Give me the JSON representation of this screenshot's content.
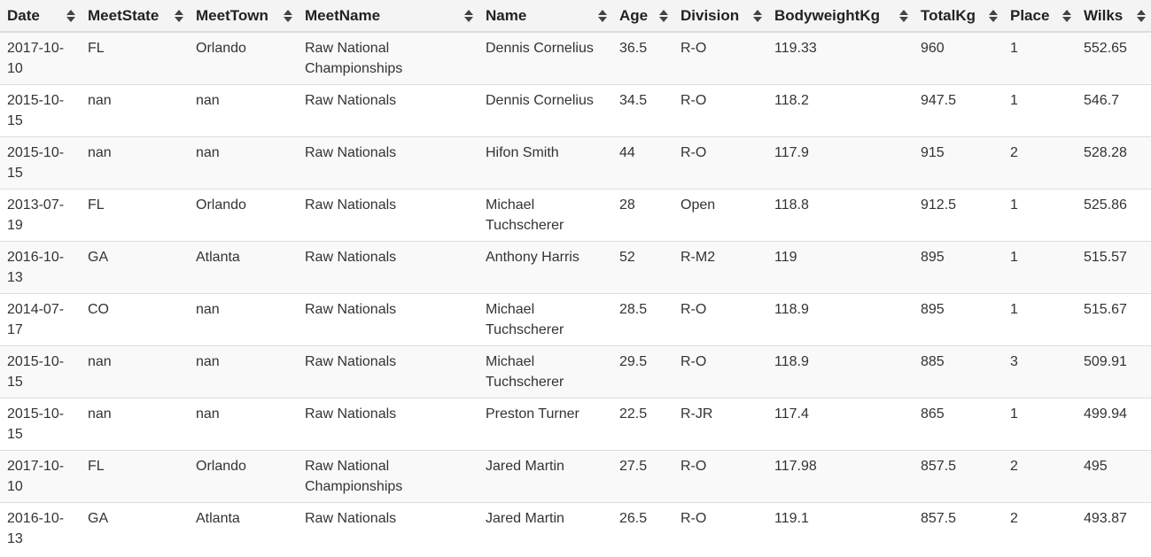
{
  "table": {
    "columns": [
      "Date",
      "MeetState",
      "MeetTown",
      "MeetName",
      "Name",
      "Age",
      "Division",
      "BodyweightKg",
      "TotalKg",
      "Place",
      "Wilks"
    ],
    "rows": [
      [
        "2017-10-10",
        "FL",
        "Orlando",
        "Raw National Championships",
        "Dennis Cornelius",
        "36.5",
        "R-O",
        "119.33",
        "960",
        "1",
        "552.65"
      ],
      [
        "2015-10-15",
        "nan",
        "nan",
        "Raw Nationals",
        "Dennis Cornelius",
        "34.5",
        "R-O",
        "118.2",
        "947.5",
        "1",
        "546.7"
      ],
      [
        "2015-10-15",
        "nan",
        "nan",
        "Raw Nationals",
        "Hifon Smith",
        "44",
        "R-O",
        "117.9",
        "915",
        "2",
        "528.28"
      ],
      [
        "2013-07-19",
        "FL",
        "Orlando",
        "Raw Nationals",
        "Michael Tuchscherer",
        "28",
        "Open",
        "118.8",
        "912.5",
        "1",
        "525.86"
      ],
      [
        "2016-10-13",
        "GA",
        "Atlanta",
        "Raw Nationals",
        "Anthony Harris",
        "52",
        "R-M2",
        "119",
        "895",
        "1",
        "515.57"
      ],
      [
        "2014-07-17",
        "CO",
        "nan",
        "Raw Nationals",
        "Michael Tuchscherer",
        "28.5",
        "R-O",
        "118.9",
        "895",
        "1",
        "515.67"
      ],
      [
        "2015-10-15",
        "nan",
        "nan",
        "Raw Nationals",
        "Michael Tuchscherer",
        "29.5",
        "R-O",
        "118.9",
        "885",
        "3",
        "509.91"
      ],
      [
        "2015-10-15",
        "nan",
        "nan",
        "Raw Nationals",
        "Preston Turner",
        "22.5",
        "R-JR",
        "117.4",
        "865",
        "1",
        "499.94"
      ],
      [
        "2017-10-10",
        "FL",
        "Orlando",
        "Raw National Championships",
        "Jared Martin",
        "27.5",
        "R-O",
        "117.98",
        "857.5",
        "2",
        "495"
      ],
      [
        "2016-10-13",
        "GA",
        "Atlanta",
        "Raw Nationals",
        "Jared Martin",
        "26.5",
        "R-O",
        "119.1",
        "857.5",
        "2",
        "493.87"
      ]
    ]
  },
  "icons": {
    "sort": "sort-icon"
  },
  "colors": {
    "header_bg": "#f4f4f4",
    "stripe": "#f9f9f9",
    "border": "#dddddd"
  }
}
